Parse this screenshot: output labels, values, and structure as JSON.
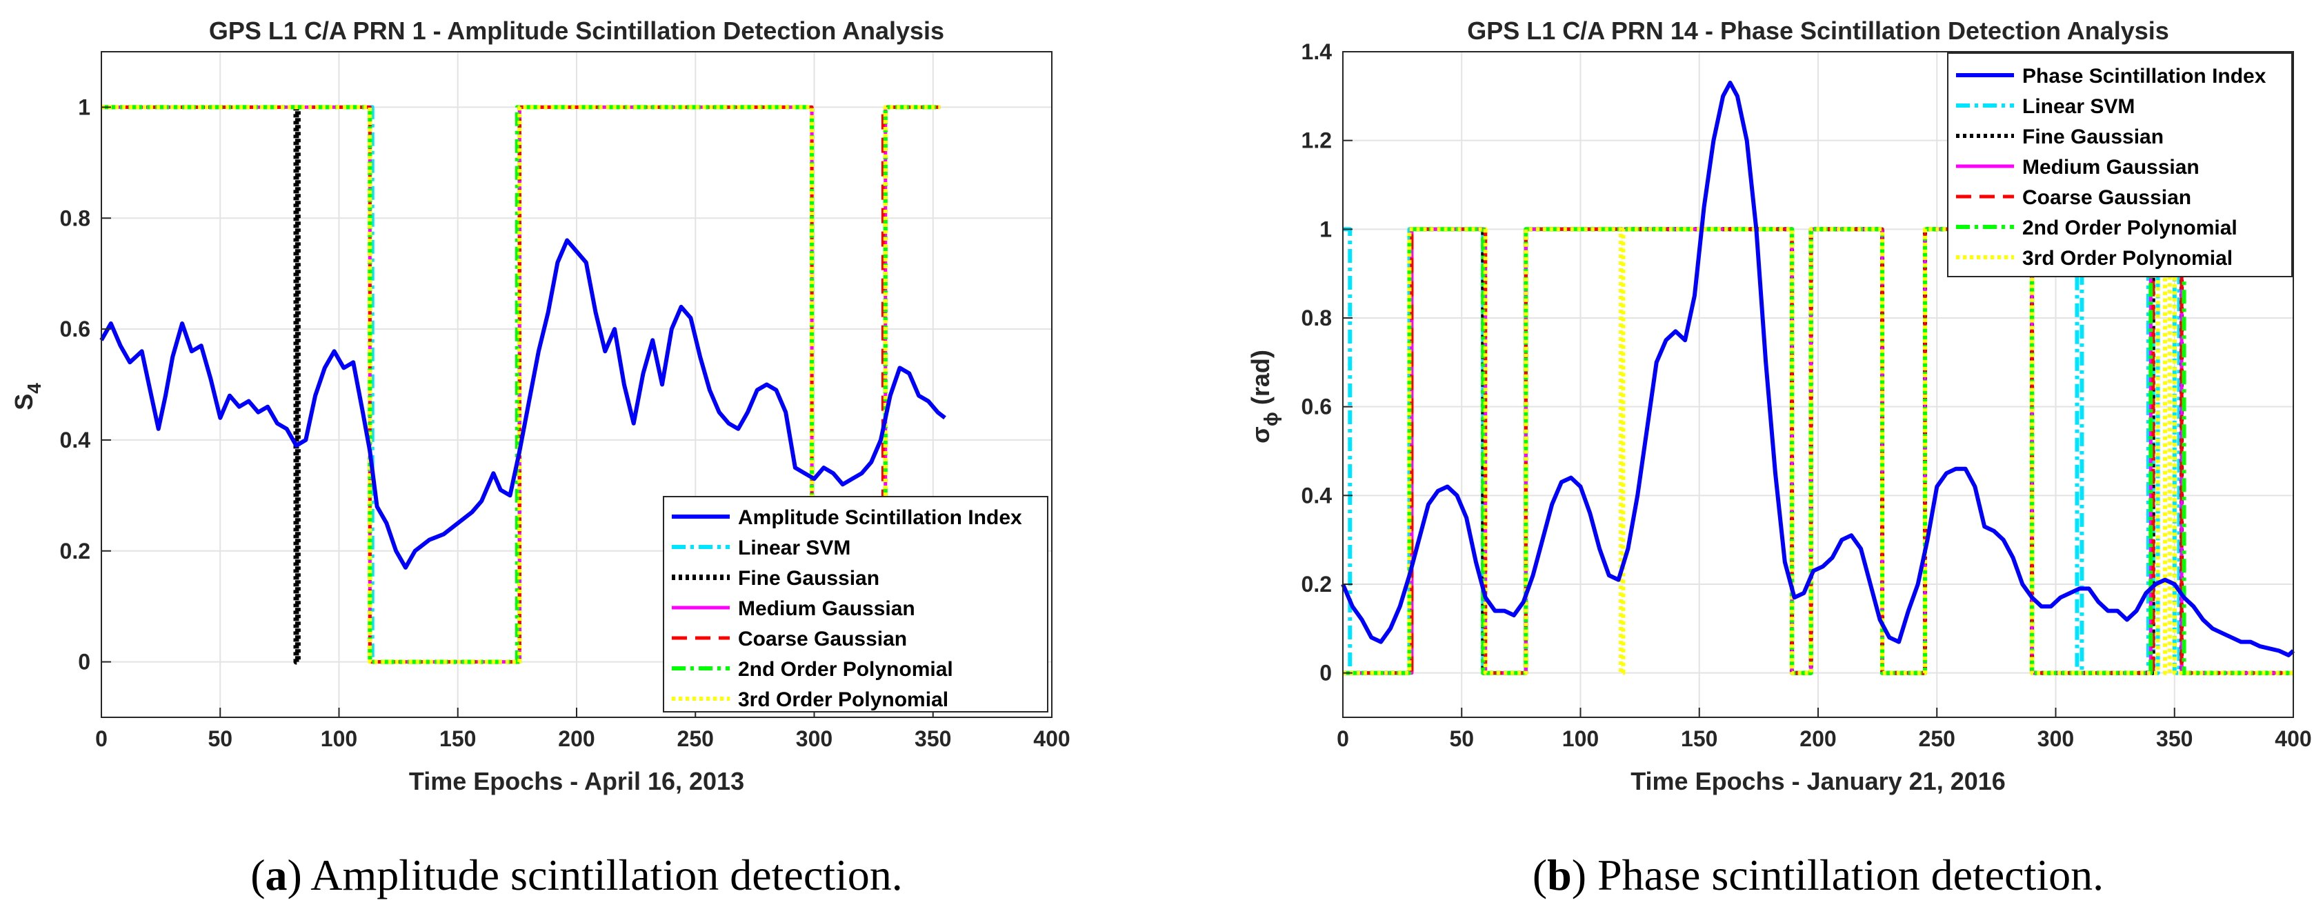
{
  "colors": {
    "amplitude_index": "#0000ff",
    "phase_index": "#0000ff",
    "linear_svm": "#00e5ff",
    "fine_gaussian": "#000000",
    "medium_gaussian": "#ff00ff",
    "coarse_gaussian": "#ff0000",
    "poly2": "#00ff00",
    "poly3": "#ffff00"
  },
  "captions": {
    "a": {
      "letter": "a",
      "text": " Amplitude scintillation detection."
    },
    "b": {
      "letter": "b",
      "text": " Phase scintillation detection."
    }
  },
  "chart_data": [
    {
      "type": "line",
      "title": "GPS L1 C/A PRN 1 - Amplitude Scintillation Detection Analysis",
      "xlabel": "Time Epochs - April 16, 2013",
      "ylabel": "S",
      "ylabel_sub": "4",
      "xlim": [
        0,
        400
      ],
      "ylim": [
        -0.1,
        1.1
      ],
      "xticks": [
        0,
        50,
        100,
        150,
        200,
        250,
        300,
        350,
        400
      ],
      "yticks": [
        0,
        0.2,
        0.4,
        0.6,
        0.8,
        1
      ],
      "xtick_labels": [
        "0",
        "50",
        "100",
        "150",
        "200",
        "250",
        "300",
        "350",
        "400"
      ],
      "ytick_labels": [
        "0",
        "0.2",
        "0.4",
        "0.6",
        "0.8",
        "1"
      ],
      "grid": true,
      "legend_position": "bottom-right",
      "series": [
        {
          "name": "Amplitude Scintillation Index",
          "key": "amplitude_index",
          "style": "solid",
          "width": 6,
          "x": [
            0,
            4,
            8,
            12,
            17,
            20,
            24,
            27,
            30,
            34,
            38,
            42,
            46,
            50,
            54,
            58,
            62,
            66,
            70,
            74,
            78,
            82,
            86,
            90,
            94,
            98,
            102,
            106,
            110,
            113,
            116,
            120,
            124,
            128,
            132,
            138,
            144,
            150,
            156,
            160,
            165,
            168,
            172,
            176,
            180,
            184,
            188,
            192,
            196,
            200,
            204,
            208,
            212,
            216,
            220,
            224,
            228,
            232,
            236,
            240,
            244,
            248,
            252,
            256,
            260,
            264,
            268,
            272,
            276,
            280,
            284,
            288,
            292,
            296,
            300,
            304,
            308,
            312,
            316,
            320,
            324,
            328,
            332,
            336,
            340,
            344,
            348,
            352,
            355
          ],
          "y": [
            0.58,
            0.61,
            0.57,
            0.54,
            0.56,
            0.5,
            0.42,
            0.48,
            0.55,
            0.61,
            0.56,
            0.57,
            0.51,
            0.44,
            0.48,
            0.46,
            0.47,
            0.45,
            0.46,
            0.43,
            0.42,
            0.39,
            0.4,
            0.48,
            0.53,
            0.56,
            0.53,
            0.54,
            0.45,
            0.38,
            0.28,
            0.25,
            0.2,
            0.17,
            0.2,
            0.22,
            0.23,
            0.25,
            0.27,
            0.29,
            0.34,
            0.31,
            0.3,
            0.38,
            0.47,
            0.56,
            0.63,
            0.72,
            0.76,
            0.74,
            0.72,
            0.63,
            0.56,
            0.6,
            0.5,
            0.43,
            0.52,
            0.58,
            0.5,
            0.6,
            0.64,
            0.62,
            0.55,
            0.49,
            0.45,
            0.43,
            0.42,
            0.45,
            0.49,
            0.5,
            0.49,
            0.45,
            0.35,
            0.34,
            0.33,
            0.35,
            0.34,
            0.32,
            0.33,
            0.34,
            0.36,
            0.4,
            0.48,
            0.53,
            0.52,
            0.48,
            0.47,
            0.45,
            0.44
          ]
        },
        {
          "name": "Linear SVM",
          "key": "linear_svm",
          "style": "dashdot",
          "width": 6,
          "x": [
            0,
            114,
            114,
            176,
            176,
            299,
            299,
            330,
            330,
            353
          ],
          "y": [
            1,
            1,
            0,
            0,
            1,
            1,
            0,
            0,
            1,
            1
          ]
        },
        {
          "name": "Fine Gaussian",
          "key": "fine_gaussian",
          "style": "dotted",
          "width": 8,
          "x": [
            82,
            82,
            82.7,
            82.7
          ],
          "y": [
            1,
            0,
            0,
            1
          ]
        },
        {
          "name": "Medium Gaussian",
          "key": "medium_gaussian",
          "style": "solid",
          "width": 5,
          "x": [
            0,
            113,
            113,
            176,
            176,
            299,
            299,
            330,
            330,
            353
          ],
          "y": [
            1,
            1,
            0,
            0,
            1,
            1,
            0,
            0,
            1,
            1
          ]
        },
        {
          "name": "Coarse Gaussian",
          "key": "coarse_gaussian",
          "style": "dashed",
          "width": 5,
          "x": [
            0,
            113,
            113,
            176,
            176,
            299,
            299,
            329,
            329,
            353
          ],
          "y": [
            1,
            1,
            0,
            0,
            1,
            1,
            0,
            0,
            1,
            1
          ]
        },
        {
          "name": "2nd Order Polynomial",
          "key": "poly2",
          "style": "dashdot",
          "width": 6,
          "x": [
            0,
            113,
            113,
            175,
            175,
            299,
            299,
            330,
            330,
            353
          ],
          "y": [
            1,
            1,
            0,
            0,
            1,
            1,
            0,
            0,
            1,
            1
          ]
        },
        {
          "name": "3rd Order Polynomial",
          "key": "poly3",
          "style": "dotted",
          "width": 6,
          "x": [
            0,
            113,
            113,
            176,
            176,
            299,
            299,
            330,
            330,
            353
          ],
          "y": [
            1,
            1,
            0,
            0,
            1,
            1,
            0,
            0,
            1,
            1
          ]
        }
      ]
    },
    {
      "type": "line",
      "title": "GPS L1 C/A PRN 14 - Phase Scintillation Detection Analysis",
      "xlabel": "Time Epochs - January 21, 2016",
      "ylabel": "σ",
      "ylabel_sub": "ϕ",
      "ylabel_suffix": " (rad)",
      "xlim": [
        0,
        400
      ],
      "ylim": [
        -0.1,
        1.4
      ],
      "xticks": [
        0,
        50,
        100,
        150,
        200,
        250,
        300,
        350,
        400
      ],
      "yticks": [
        0,
        0.2,
        0.4,
        0.6,
        0.8,
        1,
        1.2,
        1.4
      ],
      "xtick_labels": [
        "0",
        "50",
        "100",
        "150",
        "200",
        "250",
        "300",
        "350",
        "400"
      ],
      "ytick_labels": [
        "0",
        "0.2",
        "0.4",
        "0.6",
        "0.8",
        "1",
        "1.2",
        "1.4"
      ],
      "grid": true,
      "legend_position": "top-right",
      "series": [
        {
          "name": "Phase Scintillation Index",
          "key": "phase_index",
          "style": "solid",
          "width": 6,
          "x": [
            0,
            4,
            8,
            12,
            16,
            20,
            24,
            28,
            32,
            36,
            40,
            44,
            48,
            52,
            56,
            60,
            64,
            68,
            72,
            76,
            80,
            84,
            88,
            92,
            96,
            100,
            104,
            108,
            112,
            116,
            120,
            124,
            128,
            132,
            136,
            140,
            144,
            148,
            152,
            156,
            160,
            163,
            166,
            170,
            174,
            178,
            182,
            186,
            190,
            194,
            198,
            202,
            206,
            210,
            214,
            218,
            222,
            226,
            230,
            234,
            238,
            242,
            246,
            250,
            254,
            258,
            262,
            266,
            270,
            274,
            278,
            282,
            286,
            290,
            294,
            298,
            302,
            306,
            310,
            314,
            318,
            322,
            326,
            330,
            334,
            338,
            342,
            346,
            350,
            354,
            358,
            362,
            366,
            370,
            374,
            378,
            382,
            386,
            390,
            394,
            398,
            400
          ],
          "y": [
            0.2,
            0.15,
            0.12,
            0.08,
            0.07,
            0.1,
            0.15,
            0.22,
            0.3,
            0.38,
            0.41,
            0.42,
            0.4,
            0.35,
            0.25,
            0.17,
            0.14,
            0.14,
            0.13,
            0.16,
            0.22,
            0.3,
            0.38,
            0.43,
            0.44,
            0.42,
            0.36,
            0.28,
            0.22,
            0.21,
            0.28,
            0.4,
            0.55,
            0.7,
            0.75,
            0.77,
            0.75,
            0.85,
            1.05,
            1.2,
            1.3,
            1.33,
            1.3,
            1.2,
            1.0,
            0.7,
            0.45,
            0.25,
            0.17,
            0.18,
            0.23,
            0.24,
            0.26,
            0.3,
            0.31,
            0.28,
            0.2,
            0.12,
            0.08,
            0.07,
            0.14,
            0.2,
            0.3,
            0.42,
            0.45,
            0.46,
            0.46,
            0.42,
            0.33,
            0.32,
            0.3,
            0.26,
            0.2,
            0.17,
            0.15,
            0.15,
            0.17,
            0.18,
            0.19,
            0.19,
            0.16,
            0.14,
            0.14,
            0.12,
            0.14,
            0.18,
            0.2,
            0.21,
            0.2,
            0.17,
            0.15,
            0.12,
            0.1,
            0.09,
            0.08,
            0.07,
            0.07,
            0.06,
            0.055,
            0.05,
            0.04,
            0.05
          ]
        },
        {
          "name": "Linear SVM",
          "key": "linear_svm",
          "style": "dashdot",
          "width": 6,
          "x": [
            0,
            3,
            3,
            28,
            28,
            59,
            59,
            77,
            77,
            189,
            189,
            197,
            197,
            227,
            227,
            245,
            245,
            290,
            290,
            309,
            309,
            311,
            311,
            339,
            339,
            341,
            341,
            343,
            343,
            350,
            350,
            352,
            352,
            400
          ],
          "y": [
            1,
            1,
            0,
            0,
            1,
            1,
            0,
            0,
            1,
            1,
            0,
            0,
            1,
            1,
            0,
            0,
            1,
            1,
            0,
            0,
            1,
            1,
            0,
            0,
            1,
            1,
            0,
            0,
            1,
            1,
            0,
            0,
            1,
            1
          ]
        },
        {
          "name": "Fine Gaussian",
          "key": "fine_gaussian",
          "style": "dotted",
          "width": 6,
          "x": [
            0,
            28,
            28,
            59,
            59,
            77,
            77,
            189,
            189,
            197,
            197,
            227,
            227,
            245,
            245,
            290,
            290,
            341,
            341,
            353,
            353,
            400
          ],
          "y": [
            0,
            0,
            1,
            1,
            0,
            0,
            1,
            1,
            0,
            0,
            1,
            1,
            0,
            0,
            1,
            1,
            0,
            0,
            1,
            1,
            0,
            0
          ]
        },
        {
          "name": "Medium Gaussian",
          "key": "medium_gaussian",
          "style": "solid",
          "width": 5,
          "x": [
            0,
            29,
            29,
            60,
            60,
            77,
            77,
            189,
            189,
            197,
            197,
            227,
            227,
            245,
            245,
            290,
            290,
            340,
            340,
            353,
            353,
            400
          ],
          "y": [
            0,
            0,
            1,
            1,
            0,
            0,
            1,
            1,
            0,
            0,
            1,
            1,
            0,
            0,
            1,
            1,
            0,
            0,
            1,
            1,
            0,
            0
          ]
        },
        {
          "name": "Coarse Gaussian",
          "key": "coarse_gaussian",
          "style": "dashed",
          "width": 5,
          "x": [
            0,
            29,
            29,
            60,
            60,
            77,
            77,
            189,
            189,
            197,
            197,
            227,
            227,
            245,
            245,
            290,
            290,
            341,
            341,
            353,
            353,
            400
          ],
          "y": [
            0,
            0,
            1,
            1,
            0,
            0,
            1,
            1,
            0,
            0,
            1,
            1,
            0,
            0,
            1,
            1,
            0,
            0,
            1,
            1,
            0,
            0
          ]
        },
        {
          "name": "2nd Order Polynomial",
          "key": "poly2",
          "style": "dashdot",
          "width": 6,
          "x": [
            0,
            28,
            28,
            59,
            59,
            77,
            77,
            189,
            189,
            197,
            197,
            227,
            227,
            245,
            245,
            290,
            290,
            340,
            340,
            354,
            354,
            400
          ],
          "y": [
            0,
            0,
            1,
            1,
            0,
            0,
            1,
            1,
            0,
            0,
            1,
            1,
            0,
            0,
            1,
            1,
            0,
            0,
            1,
            1,
            0,
            0
          ]
        },
        {
          "name": "3rd Order Polynomial",
          "key": "poly3",
          "style": "dotted",
          "width": 6,
          "x": [
            0,
            28,
            28,
            60,
            60,
            77,
            77,
            117,
            117,
            118,
            118,
            189,
            189,
            197,
            197,
            227,
            227,
            245,
            245,
            290,
            290,
            343,
            343,
            346,
            346,
            348,
            348,
            350,
            350,
            354,
            354,
            400
          ],
          "y": [
            0,
            0,
            1,
            1,
            0,
            0,
            1,
            1,
            0,
            0,
            1,
            1,
            0,
            0,
            1,
            1,
            0,
            0,
            1,
            1,
            0,
            0,
            1,
            1,
            0,
            0,
            1,
            1,
            0,
            0,
            0,
            0
          ]
        }
      ]
    }
  ]
}
